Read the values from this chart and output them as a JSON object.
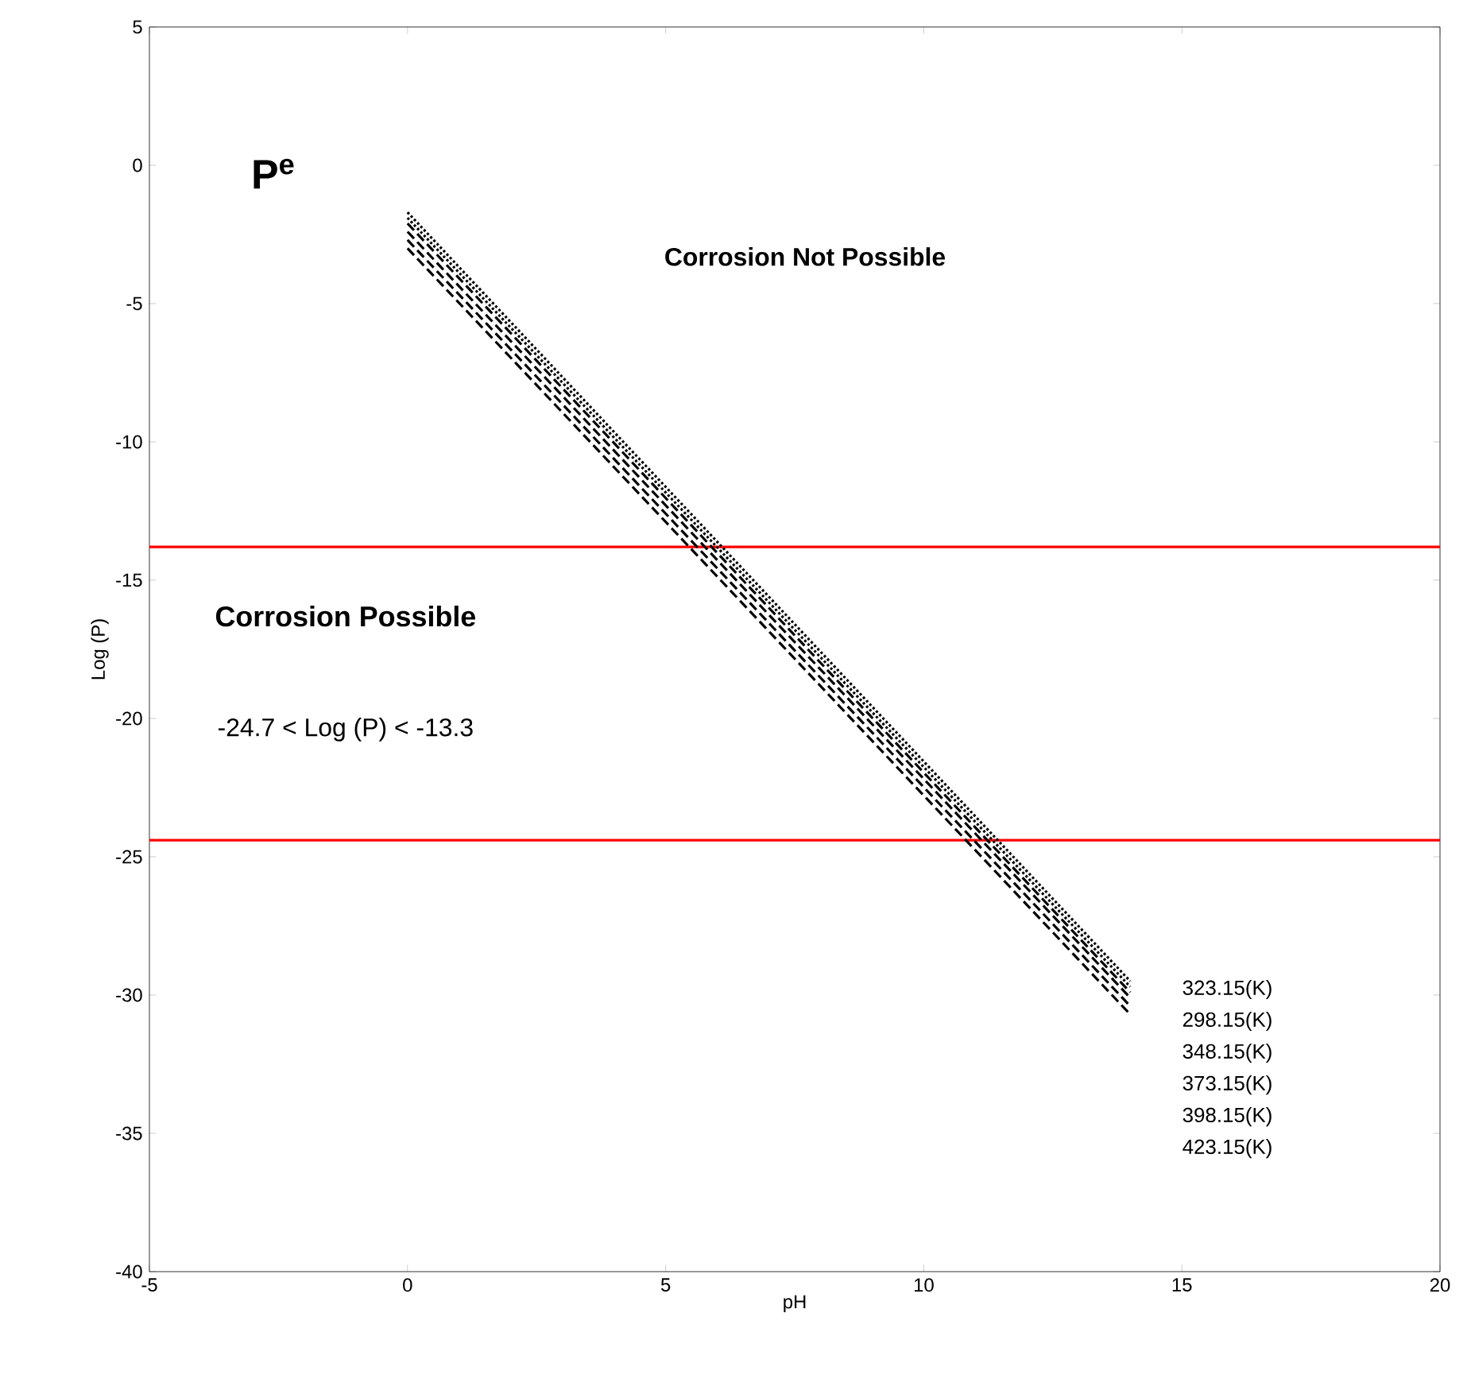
{
  "chart_data": {
    "type": "line",
    "xlabel": "pH",
    "ylabel": "Log (P)",
    "xlim": [
      -5,
      20
    ],
    "ylim": [
      -40,
      5
    ],
    "xticks": [
      -5,
      0,
      5,
      10,
      15,
      20
    ],
    "yticks": [
      5,
      0,
      -5,
      -10,
      -15,
      -20,
      -25,
      -30,
      -35,
      -40
    ],
    "x": [
      0,
      14
    ],
    "series": [
      {
        "name": "323.15(K)",
        "color": "#000000",
        "line_style": "dotted",
        "values": [
          -1.7,
          -29.5
        ]
      },
      {
        "name": "298.15(K)",
        "color": "#000000",
        "line_style": "dotted",
        "values": [
          -1.9,
          -29.7
        ]
      },
      {
        "name": "348.15(K)",
        "color": "#000000",
        "line_style": "dashed",
        "values": [
          -2.1,
          -29.9
        ]
      },
      {
        "name": "373.15(K)",
        "color": "#000000",
        "line_style": "dashed",
        "values": [
          -2.4,
          -30.1
        ]
      },
      {
        "name": "398.15(K)",
        "color": "#000000",
        "line_style": "dashed",
        "values": [
          -2.7,
          -30.4
        ]
      },
      {
        "name": "423.15(K)",
        "color": "#000000",
        "line_style": "dashed",
        "values": [
          -3.0,
          -30.7
        ]
      }
    ],
    "ref_lines": [
      {
        "axis": "y",
        "value": -13.8,
        "color": "#ff0000",
        "line_style": "solid"
      },
      {
        "axis": "y",
        "value": -24.4,
        "color": "#ff0000",
        "line_style": "solid"
      }
    ],
    "annotations": [
      "P$^{e}$",
      "Corrosion Not Possible",
      "Corrosion Possible",
      "-24.7 < Log (P) < -13.3"
    ],
    "grid": false
  }
}
